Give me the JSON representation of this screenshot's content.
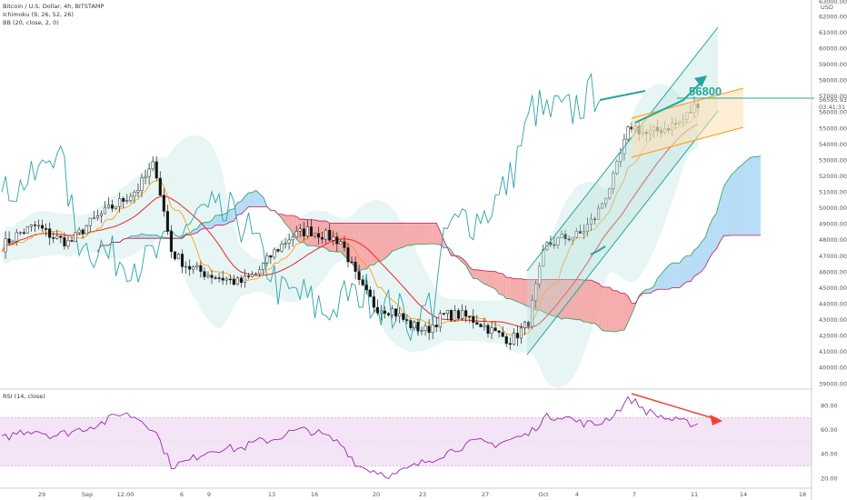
{
  "header": {
    "symbol_line": "Bitcoin / U.S. Dollar, 4h, BITSTAMP",
    "indicator_1": "Ichimoku (9, 26, 52, 26)",
    "indicator_2": "BB (20, close, 2, 0)",
    "rsi_label": "RSI (14, close)"
  },
  "price_axis": {
    "currency": "USD",
    "ticks": [
      "62000.00",
      "61000.00",
      "60000.00",
      "59000.00",
      "58000.00",
      "57000.00",
      "56000.00",
      "55000.00",
      "54000.00",
      "53000.00",
      "52000.00",
      "51000.00",
      "50000.00",
      "49000.00",
      "48000.00",
      "47000.00",
      "46000.00",
      "45000.00",
      "44000.00",
      "43000.00",
      "42000.00",
      "41000.00",
      "40000.00",
      "39000.00"
    ],
    "current_price": "56595.93",
    "countdown": "03:41:31",
    "top_partial": "63000.00"
  },
  "rsi_axis": {
    "ticks": [
      "80.00",
      "60.00",
      "40.00",
      "20.00"
    ]
  },
  "time_axis": {
    "ticks": [
      "29",
      "Sep",
      "12:00",
      "6",
      "9",
      "13",
      "16",
      "20",
      "23",
      "27",
      "Oct",
      "4",
      "7",
      "11",
      "14",
      "18"
    ]
  },
  "annotation": {
    "target_label": "56800"
  },
  "colors": {
    "up_candle": "#333333",
    "down_candle": "#111111",
    "tenkan": "#2aa3a8",
    "kijun": "#ff9800",
    "bb_basis": "#e53935",
    "cloud_bull": "#aed8f5",
    "cloud_bear": "#f5a3a3",
    "channel": "#26a69a",
    "rsi_line": "#9c27b0",
    "rsi_band": "#f3e5f5",
    "arrow_teal": "#26a69a",
    "arrow_red": "#f44336"
  },
  "chart_data": {
    "type": "candlestick",
    "title": "Bitcoin / U.S. Dollar, 4h, BITSTAMP",
    "ylim": [
      38500,
      63500
    ],
    "x": [
      "29",
      "Sep",
      "12:00",
      "6",
      "9",
      "13",
      "16",
      "20",
      "23",
      "27",
      "Oct",
      "4",
      "7",
      "11",
      "14",
      "18"
    ],
    "series": [
      {
        "name": "Bitcoin / U.S. Dollar",
        "close_path": [
          47600,
          48400,
          48900,
          48200,
          47800,
          48900,
          49700,
          50400,
          51200,
          52800,
          47200,
          46300,
          45900,
          45600,
          45300,
          45900,
          47200,
          48200,
          48600,
          48300,
          47900,
          45300,
          43800,
          43600,
          42700,
          42300,
          43300,
          43300,
          42900,
          42200,
          41700,
          42800,
          47600,
          48100,
          48300,
          49500,
          51800,
          55200,
          54600,
          55000,
          55400,
          56596
        ]
      }
    ],
    "target_price": 56800,
    "current_price": 56595.93,
    "rsi": {
      "ylim": [
        15,
        90
      ],
      "overbought": 70,
      "oversold": 30,
      "values": [
        52,
        58,
        60,
        55,
        58,
        62,
        66,
        74,
        70,
        60,
        30,
        34,
        42,
        45,
        44,
        50,
        52,
        58,
        60,
        55,
        48,
        30,
        26,
        22,
        28,
        34,
        40,
        46,
        50,
        48,
        52,
        56,
        70,
        72,
        66,
        64,
        72,
        86,
        75,
        70,
        66,
        65
      ]
    }
  }
}
